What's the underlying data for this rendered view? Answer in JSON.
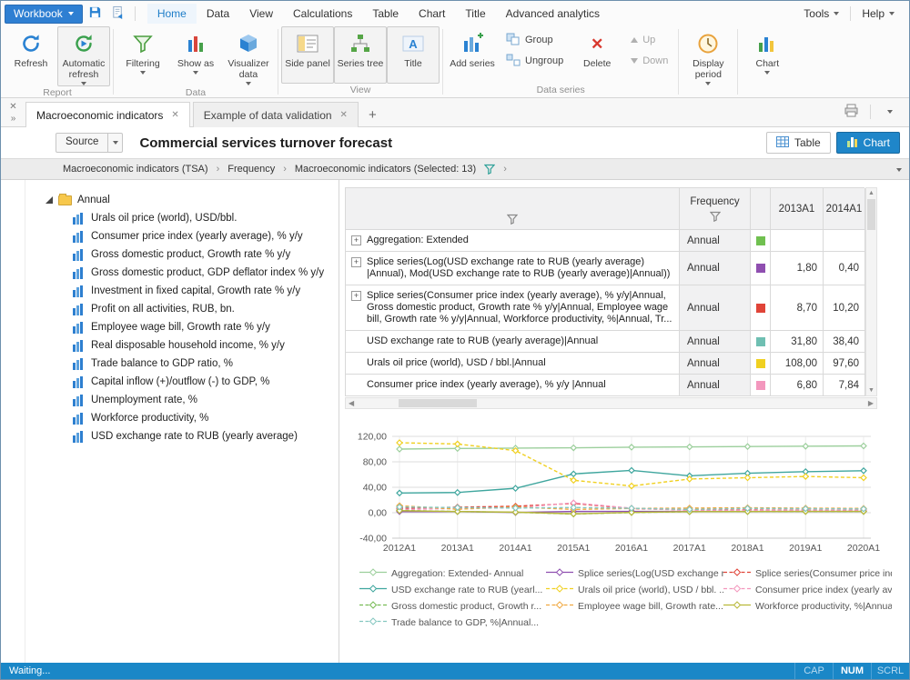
{
  "ribbon": {
    "workbook": "Workbook",
    "active_tab": "Home",
    "tabs": [
      "Home",
      "Data",
      "View",
      "Calculations",
      "Table",
      "Chart",
      "Title",
      "Advanced analytics"
    ],
    "tools": "Tools",
    "help": "Help",
    "buttons": {
      "refresh": "Refresh",
      "auto_refresh": "Automatic refresh",
      "filtering": "Filtering",
      "show_as": "Show as",
      "visualizer": "Visualizer data",
      "side_panel": "Side panel",
      "series_tree": "Series tree",
      "title": "Title",
      "add_series": "Add series",
      "group": "Group",
      "ungroup": "Ungroup",
      "delete": "Delete",
      "up": "Up",
      "down": "Down",
      "display_period": "Display period",
      "chart": "Chart"
    },
    "group_labels": {
      "report": "Report",
      "data": "Data",
      "view": "View",
      "data_series": "Data series"
    }
  },
  "document_tabs": {
    "tabs": [
      {
        "label": "Macroeconomic indicators",
        "active": true
      },
      {
        "label": "Example of data validation",
        "active": false
      }
    ],
    "add_label": "+"
  },
  "toolbar": {
    "source": "Source",
    "title": "Commercial services turnover forecast",
    "table_button": "Table",
    "chart_button": "Chart"
  },
  "breadcrumb": {
    "items": [
      "Macroeconomic indicators (TSA)",
      "Frequency",
      "Macroeconomic indicators (Selected: 13)"
    ]
  },
  "tree": {
    "root": "Annual",
    "items": [
      "Urals oil price (world), USD/bbl.",
      "Consumer price index (yearly average), % y/y",
      "Gross domestic product, Growth rate % y/y",
      "Gross domestic product, GDP deflator index % y/y",
      "Investment in fixed capital, Growth rate % y/y",
      "Profit on all activities, RUB, bn.",
      "Employee wage bill, Growth rate % y/y",
      "Real disposable household income, % y/y",
      "Trade balance to GDP ratio, %",
      "Capital inflow (+)/outflow (-) to GDP, %",
      "Unemployment rate, %",
      "Workforce productivity, %",
      "USD exchange rate to RUB (yearly average)"
    ]
  },
  "table": {
    "columns": {
      "frequency": "Frequency",
      "year1": "2013A1",
      "year2": "2014A1"
    },
    "rows": [
      {
        "name": "Aggregation: Extended",
        "expandable": true,
        "frequency": "Annual",
        "color": "#70c050",
        "v2013": "",
        "v2014": ""
      },
      {
        "name": "Splice series(Log(USD exchange rate to RUB (yearly average) |Annual), Mod(USD exchange rate to RUB (yearly average)|Annual))",
        "expandable": true,
        "frequency": "Annual",
        "color": "#8f4fb0",
        "v2013": "1,80",
        "v2014": "0,40"
      },
      {
        "name": "Splice series(Consumer price index (yearly average), % y/y|Annual, Gross domestic product, Growth rate % y/y|Annual, Employee wage bill, Growth rate % y/y|Annual, Workforce productivity, %|Annual, Tr...",
        "expandable": true,
        "frequency": "Annual",
        "color": "#e04438",
        "v2013": "8,70",
        "v2014": "10,20"
      },
      {
        "name": "USD exchange rate to RUB (yearly average)|Annual",
        "expandable": false,
        "frequency": "Annual",
        "color": "#6fbfb2",
        "v2013": "31,80",
        "v2014": "38,40"
      },
      {
        "name": "Urals oil price (world), USD / bbl.|Annual",
        "expandable": false,
        "frequency": "Annual",
        "color": "#f0d020",
        "v2013": "108,00",
        "v2014": "97,60"
      },
      {
        "name": "Consumer price index (yearly average), % y/y |Annual",
        "expandable": false,
        "frequency": "Annual",
        "color": "#f397bd",
        "v2013": "6,80",
        "v2014": "7,84"
      }
    ]
  },
  "chart_data": {
    "type": "line",
    "x": [
      "2012A1",
      "2013A1",
      "2014A1",
      "2015A1",
      "2016A1",
      "2017A1",
      "2018A1",
      "2019A1",
      "2020A1"
    ],
    "ylim": [
      -40,
      120
    ],
    "yticks": [
      120,
      80,
      40,
      0,
      -40
    ],
    "ytick_labels": [
      "120,00",
      "80,00",
      "40,00",
      "0,00",
      "-40,00"
    ],
    "grid": true,
    "legend_position": "bottom",
    "series": [
      {
        "name": "Aggregation: Extended- Annual",
        "color": "#9ccf9c",
        "dash": false,
        "values": [
          100,
          101,
          101.5,
          102,
          103,
          103.5,
          104,
          104.5,
          105
        ]
      },
      {
        "name": "Splice series(Log(USD exchange r...",
        "color": "#8f4fb0",
        "dash": false,
        "values": [
          1.7,
          1.8,
          0.4,
          2.0,
          2.1,
          2.0,
          2.1,
          2.1,
          2.1
        ]
      },
      {
        "name": "Splice series(Consumer price inde...",
        "color": "#e04438",
        "dash": true,
        "values": [
          7.0,
          8.7,
          10.2,
          14.5,
          6.5,
          4.5,
          4.5,
          4.3,
          4.2
        ]
      },
      {
        "name": "USD exchange rate to RUB (yearl...",
        "color": "#3fa69e",
        "dash": false,
        "values": [
          31.0,
          31.8,
          38.4,
          61.0,
          66.5,
          58.0,
          62.0,
          64.5,
          66.0
        ]
      },
      {
        "name": "Urals oil price (world), USD / bbl. ...",
        "color": "#f0d020",
        "dash": true,
        "values": [
          110.0,
          108.0,
          97.6,
          51.0,
          42.0,
          53.0,
          55.0,
          57.0,
          55.0
        ]
      },
      {
        "name": "Consumer price index (yearly ave...",
        "color": "#f397bd",
        "dash": true,
        "values": [
          5.1,
          6.8,
          7.8,
          15.5,
          7.1,
          3.7,
          4.0,
          4.0,
          4.0
        ]
      },
      {
        "name": "Gross domestic product, Growth r...",
        "color": "#77bb55",
        "dash": true,
        "values": [
          3.7,
          1.8,
          0.7,
          -2.0,
          0.3,
          1.6,
          1.8,
          1.9,
          1.9
        ]
      },
      {
        "name": "Employee wage bill, Growth rate...",
        "color": "#f0a840",
        "dash": true,
        "values": [
          11.0,
          5.5,
          9.0,
          5.2,
          6.8,
          7.3,
          7.8,
          7.2,
          6.8
        ]
      },
      {
        "name": "Workforce productivity, %|Annua...",
        "color": "#b8b83a",
        "dash": false,
        "values": [
          3.2,
          1.9,
          0.9,
          -1.8,
          0.4,
          1.7,
          1.9,
          2.0,
          2.0
        ]
      },
      {
        "name": "Trade balance to GDP,  %|Annual...",
        "color": "#85c7c0",
        "dash": true,
        "values": [
          9.0,
          8.1,
          7.4,
          8.2,
          7.0,
          5.2,
          6.8,
          6.3,
          6.0
        ]
      }
    ]
  },
  "status_bar": {
    "message": "Waiting...",
    "indicators": [
      "CAP",
      "NUM",
      "SCRL"
    ],
    "active_indicator": "NUM"
  }
}
